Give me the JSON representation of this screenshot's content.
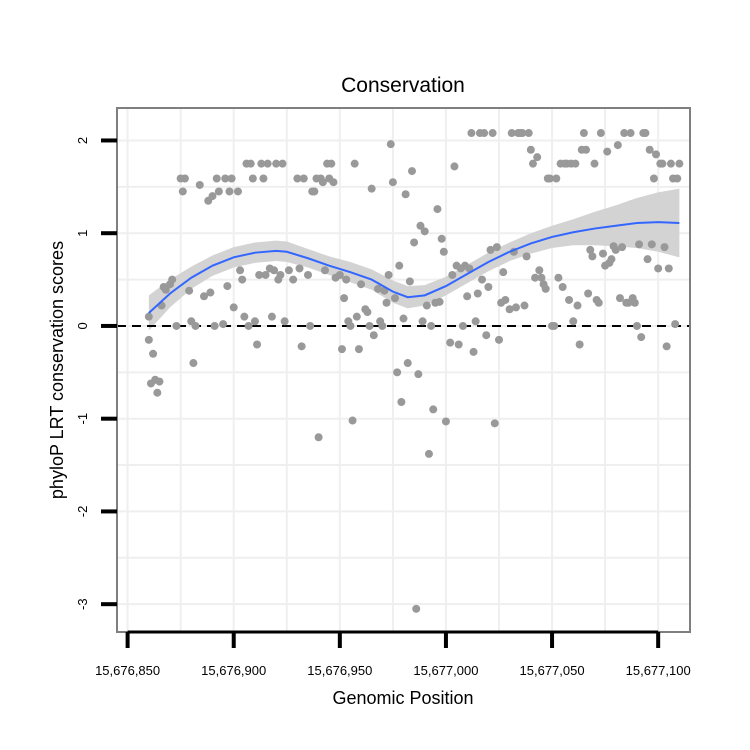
{
  "chart_data": {
    "type": "scatter",
    "title": "Conservation",
    "xlabel": "Genomic Position",
    "ylabel": "phyloP LRT conservation scores",
    "xlim": [
      15676845,
      15677115
    ],
    "ylim": [
      -3.3,
      2.35
    ],
    "xticks": [
      15676850,
      15676900,
      15676950,
      15677000,
      15677050,
      15677100
    ],
    "xtick_labels": [
      "15,676,850",
      "15,676,900",
      "15,676,950",
      "15,677,000",
      "15,677,050",
      "15,677,100"
    ],
    "yticks": [
      -3,
      -2,
      -1,
      0,
      1,
      2
    ],
    "ytick_labels": [
      "-3",
      "-2",
      "-1",
      "0",
      "1",
      "2"
    ],
    "reference_line": {
      "y": 0,
      "style": "dashed"
    },
    "colors": {
      "points": "#999999",
      "smooth": "#3366ff",
      "band": "#d3d3d3",
      "grid": "#efefef",
      "border": "#7f7f7f"
    },
    "series": [
      {
        "name": "scores",
        "points": [
          [
            15676860,
            0.1
          ],
          [
            15676860,
            -0.15
          ],
          [
            15676861,
            -0.62
          ],
          [
            15676862,
            -0.3
          ],
          [
            15676863,
            -0.58
          ],
          [
            15676864,
            -0.72
          ],
          [
            15676865,
            -0.6
          ],
          [
            15676866,
            0.22
          ],
          [
            15676867,
            0.42
          ],
          [
            15676868,
            0.39
          ],
          [
            15676870,
            0.45
          ],
          [
            15676871,
            0.5
          ],
          [
            15676873,
            0.0
          ],
          [
            15676875,
            1.59
          ],
          [
            15676876,
            1.45
          ],
          [
            15676877,
            1.59
          ],
          [
            15676879,
            0.38
          ],
          [
            15676880,
            0.05
          ],
          [
            15676881,
            -0.4
          ],
          [
            15676882,
            0.0
          ],
          [
            15676884,
            1.52
          ],
          [
            15676886,
            0.32
          ],
          [
            15676888,
            1.35
          ],
          [
            15676889,
            0.36
          ],
          [
            15676890,
            1.4
          ],
          [
            15676891,
            0.0
          ],
          [
            15676892,
            1.59
          ],
          [
            15676893,
            1.45
          ],
          [
            15676895,
            0.02
          ],
          [
            15676896,
            1.59
          ],
          [
            15676897,
            0.43
          ],
          [
            15676898,
            1.45
          ],
          [
            15676899,
            1.59
          ],
          [
            15676900,
            0.2
          ],
          [
            15676902,
            1.45
          ],
          [
            15676903,
            0.6
          ],
          [
            15676904,
            0.5
          ],
          [
            15676905,
            0.1
          ],
          [
            15676906,
            1.75
          ],
          [
            15676907,
            0.0
          ],
          [
            15676908,
            1.75
          ],
          [
            15676909,
            1.59
          ],
          [
            15676910,
            0.05
          ],
          [
            15676911,
            -0.2
          ],
          [
            15676912,
            0.55
          ],
          [
            15676913,
            1.75
          ],
          [
            15676914,
            1.59
          ],
          [
            15676915,
            0.55
          ],
          [
            15676916,
            1.75
          ],
          [
            15676917,
            0.62
          ],
          [
            15676918,
            0.1
          ],
          [
            15676919,
            0.6
          ],
          [
            15676920,
            1.75
          ],
          [
            15676921,
            0.5
          ],
          [
            15676922,
            0.55
          ],
          [
            15676923,
            1.75
          ],
          [
            15676924,
            0.05
          ],
          [
            15676926,
            0.6
          ],
          [
            15676928,
            0.5
          ],
          [
            15676930,
            1.59
          ],
          [
            15676931,
            0.62
          ],
          [
            15676932,
            -0.22
          ],
          [
            15676933,
            1.59
          ],
          [
            15676935,
            0.55
          ],
          [
            15676936,
            0.0
          ],
          [
            15676937,
            1.45
          ],
          [
            15676938,
            1.45
          ],
          [
            15676939,
            1.59
          ],
          [
            15676940,
            -1.2
          ],
          [
            15676941,
            1.59
          ],
          [
            15676942,
            1.55
          ],
          [
            15676943,
            0.6
          ],
          [
            15676944,
            1.75
          ],
          [
            15676945,
            1.59
          ],
          [
            15676946,
            1.75
          ],
          [
            15676947,
            1.55
          ],
          [
            15676948,
            0.52
          ],
          [
            15676950,
            0.55
          ],
          [
            15676951,
            -0.25
          ],
          [
            15676952,
            0.3
          ],
          [
            15676953,
            0.5
          ],
          [
            15676954,
            0.05
          ],
          [
            15676955,
            0.0
          ],
          [
            15676956,
            -1.02
          ],
          [
            15676957,
            1.75
          ],
          [
            15676958,
            0.1
          ],
          [
            15676959,
            -0.25
          ],
          [
            15676960,
            0.45
          ],
          [
            15676962,
            0.18
          ],
          [
            15676963,
            0.15
          ],
          [
            15676964,
            0.0
          ],
          [
            15676965,
            1.48
          ],
          [
            15676966,
            -0.1
          ],
          [
            15676968,
            0.4
          ],
          [
            15676969,
            0.05
          ],
          [
            15676970,
            0.0
          ],
          [
            15676971,
            0.38
          ],
          [
            15676972,
            0.25
          ],
          [
            15676973,
            0.55
          ],
          [
            15676974,
            1.96
          ],
          [
            15676975,
            1.55
          ],
          [
            15676976,
            0.3
          ],
          [
            15676977,
            -0.5
          ],
          [
            15676978,
            0.65
          ],
          [
            15676979,
            -0.82
          ],
          [
            15676980,
            0.08
          ],
          [
            15676981,
            1.42
          ],
          [
            15676982,
            -0.4
          ],
          [
            15676983,
            0.48
          ],
          [
            15676984,
            1.67
          ],
          [
            15676985,
            0.9
          ],
          [
            15676986,
            -3.05
          ],
          [
            15676987,
            -0.52
          ],
          [
            15676988,
            1.08
          ],
          [
            15676989,
            0.05
          ],
          [
            15676990,
            1.02
          ],
          [
            15676991,
            0.22
          ],
          [
            15676992,
            -1.38
          ],
          [
            15676993,
            0.0
          ],
          [
            15676994,
            -0.9
          ],
          [
            15676995,
            0.25
          ],
          [
            15676996,
            1.26
          ],
          [
            15676997,
            0.26
          ],
          [
            15676998,
            0.94
          ],
          [
            15676999,
            0.8
          ],
          [
            15677000,
            -1.03
          ],
          [
            15677002,
            -0.18
          ],
          [
            15677003,
            0.55
          ],
          [
            15677004,
            1.72
          ],
          [
            15677005,
            0.65
          ],
          [
            15677006,
            -0.2
          ],
          [
            15677007,
            0.62
          ],
          [
            15677008,
            0.0
          ],
          [
            15677009,
            0.65
          ],
          [
            15677010,
            0.32
          ],
          [
            15677011,
            0.62
          ],
          [
            15677012,
            2.08
          ],
          [
            15677013,
            -0.28
          ],
          [
            15677014,
            0.05
          ],
          [
            15677015,
            0.35
          ],
          [
            15677016,
            2.08
          ],
          [
            15677017,
            0.5
          ],
          [
            15677018,
            2.08
          ],
          [
            15677019,
            -0.1
          ],
          [
            15677020,
            0.42
          ],
          [
            15677021,
            0.82
          ],
          [
            15677022,
            2.08
          ],
          [
            15677023,
            -1.05
          ],
          [
            15677024,
            0.85
          ],
          [
            15677025,
            -0.15
          ],
          [
            15677026,
            0.25
          ],
          [
            15677027,
            0.58
          ],
          [
            15677028,
            0.28
          ],
          [
            15677030,
            0.18
          ],
          [
            15677031,
            2.08
          ],
          [
            15677032,
            0.8
          ],
          [
            15677033,
            0.2
          ],
          [
            15677034,
            2.08
          ],
          [
            15677035,
            2.08
          ],
          [
            15677036,
            2.08
          ],
          [
            15677037,
            0.22
          ],
          [
            15677038,
            0.75
          ],
          [
            15677039,
            2.08
          ],
          [
            15677040,
            1.9
          ],
          [
            15677041,
            1.75
          ],
          [
            15677042,
            0.52
          ],
          [
            15677043,
            1.82
          ],
          [
            15677044,
            0.6
          ],
          [
            15677045,
            0.52
          ],
          [
            15677046,
            0.45
          ],
          [
            15677047,
            0.4
          ],
          [
            15677048,
            1.59
          ],
          [
            15677049,
            1.59
          ],
          [
            15677050,
            0.0
          ],
          [
            15677051,
            0.0
          ],
          [
            15677052,
            1.59
          ],
          [
            15677053,
            0.52
          ],
          [
            15677054,
            1.75
          ],
          [
            15677055,
            0.42
          ],
          [
            15677056,
            1.75
          ],
          [
            15677057,
            1.75
          ],
          [
            15677058,
            0.28
          ],
          [
            15677059,
            1.75
          ],
          [
            15677060,
            0.05
          ],
          [
            15677061,
            1.75
          ],
          [
            15677062,
            0.22
          ],
          [
            15677063,
            -0.2
          ],
          [
            15677064,
            1.9
          ],
          [
            15677065,
            2.08
          ],
          [
            15677066,
            1.9
          ],
          [
            15677067,
            0.35
          ],
          [
            15677068,
            0.82
          ],
          [
            15677069,
            0.75
          ],
          [
            15677070,
            1.75
          ],
          [
            15677071,
            0.28
          ],
          [
            15677072,
            0.25
          ],
          [
            15677073,
            2.08
          ],
          [
            15677074,
            0.78
          ],
          [
            15677075,
            0.65
          ],
          [
            15677076,
            1.88
          ],
          [
            15677077,
            0.68
          ],
          [
            15677078,
            0.72
          ],
          [
            15677079,
            0.86
          ],
          [
            15677080,
            0.82
          ],
          [
            15677081,
            1.95
          ],
          [
            15677082,
            0.3
          ],
          [
            15677083,
            0.85
          ],
          [
            15677084,
            2.08
          ],
          [
            15677085,
            0.25
          ],
          [
            15677086,
            0.25
          ],
          [
            15677087,
            2.08
          ],
          [
            15677088,
            0.3
          ],
          [
            15677089,
            0.25
          ],
          [
            15677090,
            0.0
          ],
          [
            15677091,
            0.88
          ],
          [
            15677092,
            -0.12
          ],
          [
            15677093,
            2.08
          ],
          [
            15677094,
            2.08
          ],
          [
            15677095,
            0.72
          ],
          [
            15677096,
            1.9
          ],
          [
            15677097,
            0.88
          ],
          [
            15677098,
            1.59
          ],
          [
            15677099,
            1.85
          ],
          [
            15677100,
            0.62
          ],
          [
            15677101,
            1.75
          ],
          [
            15677102,
            1.75
          ],
          [
            15677103,
            0.85
          ],
          [
            15677104,
            -0.22
          ],
          [
            15677105,
            0.62
          ],
          [
            15677106,
            1.75
          ],
          [
            15677107,
            1.59
          ],
          [
            15677108,
            0.02
          ],
          [
            15677109,
            1.59
          ],
          [
            15677110,
            1.75
          ]
        ]
      }
    ],
    "smooth": {
      "x": [
        15676860,
        15676870,
        15676880,
        15676890,
        15676900,
        15676910,
        15676920,
        15676925,
        15676935,
        15676945,
        15676955,
        15676965,
        15676975,
        15676982,
        15676990,
        15677000,
        15677010,
        15677020,
        15677030,
        15677040,
        15677050,
        15677060,
        15677070,
        15677080,
        15677090,
        15677100,
        15677110
      ],
      "y": [
        0.14,
        0.35,
        0.52,
        0.65,
        0.74,
        0.79,
        0.81,
        0.8,
        0.73,
        0.65,
        0.58,
        0.5,
        0.37,
        0.31,
        0.33,
        0.43,
        0.56,
        0.69,
        0.8,
        0.89,
        0.96,
        1.01,
        1.05,
        1.08,
        1.11,
        1.12,
        1.11
      ],
      "lower": [
        -0.05,
        0.2,
        0.4,
        0.54,
        0.63,
        0.68,
        0.7,
        0.69,
        0.63,
        0.55,
        0.47,
        0.39,
        0.25,
        0.19,
        0.22,
        0.33,
        0.46,
        0.59,
        0.7,
        0.78,
        0.84,
        0.87,
        0.87,
        0.86,
        0.84,
        0.8,
        0.74
      ],
      "upper": [
        0.33,
        0.5,
        0.64,
        0.76,
        0.85,
        0.9,
        0.92,
        0.91,
        0.83,
        0.75,
        0.69,
        0.61,
        0.49,
        0.43,
        0.44,
        0.53,
        0.66,
        0.79,
        0.9,
        1.0,
        1.08,
        1.15,
        1.23,
        1.3,
        1.38,
        1.44,
        1.48
      ]
    }
  }
}
